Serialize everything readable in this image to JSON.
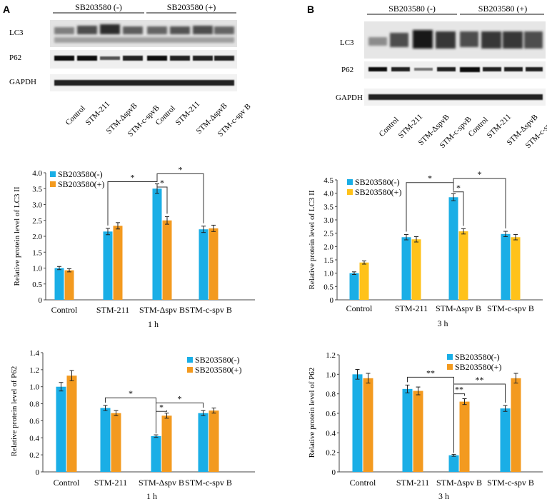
{
  "panels": [
    {
      "letter": "A",
      "blot": {
        "headers": [
          "SB203580 (-)",
          "SB203580 (+)"
        ],
        "rows": [
          "LC3",
          "P62",
          "GAPDH"
        ],
        "lanes": [
          "Control",
          "STM-211",
          "STM-ΔspvB",
          "STM-c-spvB",
          "Control",
          "STM-211",
          "STM-ΔspvB",
          "STM-c-spv B"
        ]
      }
    },
    {
      "letter": "B",
      "blot": {
        "headers": [
          "SB203580 (-)",
          "SB203580 (+)"
        ],
        "rows": [
          "LC3",
          "P62",
          "GAPDH"
        ],
        "lanes": [
          "Control",
          "STM-211",
          "STM-ΔspvB",
          "STM-c-spvB",
          "Control",
          "STM-211",
          "STM-ΔspvB",
          "STM-c-spv B"
        ]
      }
    }
  ],
  "chart_data": [
    {
      "type": "bar",
      "ylabel": "Relative protein level of LC3 II",
      "xlabel": "1 h",
      "categories": [
        "Control",
        "STM-211",
        "STM-Δspv B",
        "STM-c-spv B"
      ],
      "ylim": [
        0,
        4.0
      ],
      "yticks": [
        "0",
        "0.5",
        "1.0",
        "1.5",
        "2.0",
        "2.5",
        "3.0",
        "3.5",
        "4.0"
      ],
      "ytick_values": [
        0,
        0.5,
        1.0,
        1.5,
        2.0,
        2.5,
        3.0,
        3.5,
        4.0
      ],
      "legend_position": "top-left",
      "series": [
        {
          "name": "SB203580(-)",
          "color": "#1aaee6",
          "values": [
            1.0,
            2.15,
            3.5,
            2.22
          ],
          "errors": [
            0.05,
            0.1,
            0.15,
            0.1
          ]
        },
        {
          "name": "SB203580(+)",
          "color": "#f39a1f",
          "values": [
            0.93,
            2.33,
            2.5,
            2.25
          ],
          "errors": [
            0.05,
            0.1,
            0.12,
            0.1
          ]
        }
      ],
      "annotations": [
        {
          "label": "*",
          "kind": "series0",
          "from": 1,
          "to": 2,
          "y": 3.72
        },
        {
          "label": "*",
          "kind": "pair",
          "cat": 2,
          "y": 3.55
        },
        {
          "label": "*",
          "kind": "series0",
          "from": 2,
          "to": 3,
          "y": 3.97
        }
      ]
    },
    {
      "type": "bar",
      "ylabel": "Relative protein level of LC3 II",
      "xlabel": "3 h",
      "categories": [
        "Control",
        "STM-211",
        "STM-Δspv B",
        "STM-c-spv B"
      ],
      "ylim": [
        0,
        4.5
      ],
      "yticks": [
        "0",
        "0.5",
        "1.0",
        "1.5",
        "2.0",
        "2.5",
        "3.0",
        "3.5",
        "4.0",
        "4.5"
      ],
      "ytick_values": [
        0,
        0.5,
        1.0,
        1.5,
        2.0,
        2.5,
        3.0,
        3.5,
        4.0,
        4.5
      ],
      "legend_position": "top-left",
      "series": [
        {
          "name": "SB203580(-)",
          "color": "#1aaee6",
          "values": [
            1.0,
            2.35,
            3.85,
            2.47
          ],
          "errors": [
            0.05,
            0.1,
            0.13,
            0.1
          ]
        },
        {
          "name": "SB203580(+)",
          "color": "#ffc21a",
          "values": [
            1.4,
            2.27,
            2.57,
            2.35
          ],
          "errors": [
            0.06,
            0.1,
            0.1,
            0.1
          ]
        }
      ],
      "annotations": [
        {
          "label": "*",
          "kind": "series0",
          "from": 1,
          "to": 2,
          "y": 4.4
        },
        {
          "label": "*",
          "kind": "pair",
          "cat": 2,
          "y": 4.05
        },
        {
          "label": "*",
          "kind": "series0",
          "from": 2,
          "to": 3,
          "y": 4.55
        }
      ]
    },
    {
      "type": "bar",
      "ylabel": "Relative protein level of P62",
      "xlabel": "1 h",
      "categories": [
        "Control",
        "STM-211",
        "STM-Δspv B",
        "STM-c-spv B"
      ],
      "ylim": [
        0,
        1.4
      ],
      "yticks": [
        "0",
        "0.2",
        "0.4",
        "0.6",
        "0.8",
        "1.0",
        "1.2",
        "1.4"
      ],
      "ytick_values": [
        0,
        0.2,
        0.4,
        0.6,
        0.8,
        1.0,
        1.2,
        1.4
      ],
      "legend_position": "top-right",
      "series": [
        {
          "name": "SB203580(-)",
          "color": "#1aaee6",
          "values": [
            1.0,
            0.75,
            0.42,
            0.69
          ],
          "errors": [
            0.05,
            0.03,
            0.015,
            0.03
          ]
        },
        {
          "name": "SB203580(+)",
          "color": "#f39a1f",
          "values": [
            1.13,
            0.69,
            0.66,
            0.72
          ],
          "errors": [
            0.06,
            0.03,
            0.03,
            0.03
          ]
        }
      ],
      "annotations": [
        {
          "label": "*",
          "kind": "series0",
          "from": 1,
          "to": 2,
          "y": 0.87
        },
        {
          "label": "*",
          "kind": "pair",
          "cat": 2,
          "y": 0.71
        },
        {
          "label": "*",
          "kind": "series0",
          "from": 2,
          "to": 3,
          "y": 0.81
        }
      ]
    },
    {
      "type": "bar",
      "ylabel": "Relative protein level of P62",
      "xlabel": "3 h",
      "categories": [
        "Control",
        "STM-211",
        "STM-Δspv B",
        "STM-c-spv B"
      ],
      "ylim": [
        0,
        1.2
      ],
      "yticks": [
        "0",
        "0.2",
        "0.4",
        "0.6",
        "0.8",
        "1.0",
        "1.2"
      ],
      "ytick_values": [
        0,
        0.2,
        0.4,
        0.6,
        0.8,
        1.0,
        1.2
      ],
      "legend_position": "top-right",
      "series": [
        {
          "name": "SB203580(-)",
          "color": "#1aaee6",
          "values": [
            1.0,
            0.85,
            0.17,
            0.65
          ],
          "errors": [
            0.05,
            0.04,
            0.01,
            0.03
          ]
        },
        {
          "name": "SB203580(+)",
          "color": "#f39a1f",
          "values": [
            0.96,
            0.83,
            0.72,
            0.96
          ],
          "errors": [
            0.05,
            0.04,
            0.03,
            0.05
          ]
        }
      ],
      "annotations": [
        {
          "label": "**",
          "kind": "series0",
          "from": 1,
          "to": 2,
          "y": 0.97
        },
        {
          "label": "**",
          "kind": "pair",
          "cat": 2,
          "y": 0.8
        },
        {
          "label": "**",
          "kind": "series0",
          "from": 2,
          "to": 3,
          "y": 0.9
        }
      ]
    }
  ]
}
